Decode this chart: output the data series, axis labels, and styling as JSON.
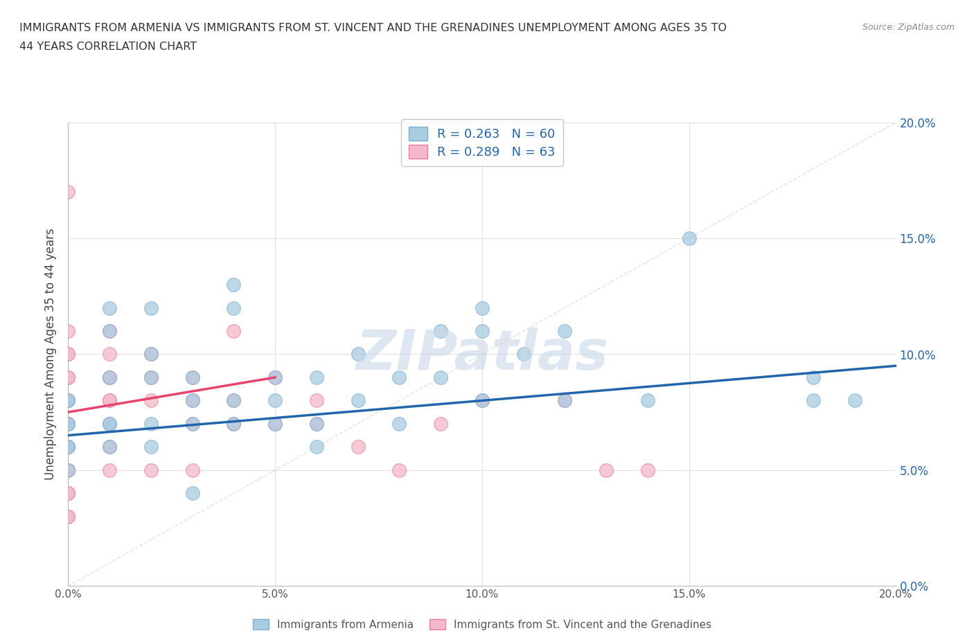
{
  "title_line1": "IMMIGRANTS FROM ARMENIA VS IMMIGRANTS FROM ST. VINCENT AND THE GRENADINES UNEMPLOYMENT AMONG AGES 35 TO",
  "title_line2": "44 YEARS CORRELATION CHART",
  "source": "Source: ZipAtlas.com",
  "ylabel": "Unemployment Among Ages 35 to 44 years",
  "xlim": [
    0.0,
    0.2
  ],
  "ylim": [
    0.0,
    0.2
  ],
  "xticks": [
    0.0,
    0.05,
    0.1,
    0.15,
    0.2
  ],
  "yticks": [
    0.0,
    0.05,
    0.1,
    0.15,
    0.2
  ],
  "xticklabels": [
    "0.0%",
    "5.0%",
    "10.0%",
    "15.0%",
    "20.0%"
  ],
  "yticklabels_right": [
    "0.0%",
    "5.0%",
    "10.0%",
    "15.0%",
    "20.0%"
  ],
  "armenia_color": "#a8cce0",
  "armenia_edge": "#7bafd4",
  "svg_color": "#f4b8c8",
  "svg_edge": "#e87fa0",
  "armenia_R": 0.263,
  "armenia_N": 60,
  "svg_R": 0.289,
  "svg_N": 63,
  "legend_R_color": "#2166ac",
  "armenia_line_color": "#2166ac",
  "svg_line_color": "#e8436a",
  "diag_line_color": "#cccccc",
  "watermark_color": "#c8d8e8",
  "armenia_x": [
    0.0,
    0.0,
    0.0,
    0.0,
    0.0,
    0.0,
    0.0,
    0.01,
    0.01,
    0.01,
    0.01,
    0.01,
    0.01,
    0.02,
    0.02,
    0.02,
    0.02,
    0.02,
    0.03,
    0.03,
    0.03,
    0.03,
    0.04,
    0.04,
    0.04,
    0.04,
    0.05,
    0.05,
    0.05,
    0.06,
    0.06,
    0.06,
    0.07,
    0.07,
    0.08,
    0.08,
    0.09,
    0.09,
    0.1,
    0.1,
    0.1,
    0.11,
    0.12,
    0.12,
    0.14,
    0.15,
    0.18,
    0.18,
    0.19
  ],
  "armenia_y": [
    0.07,
    0.07,
    0.08,
    0.08,
    0.06,
    0.06,
    0.05,
    0.12,
    0.11,
    0.09,
    0.07,
    0.07,
    0.06,
    0.12,
    0.1,
    0.09,
    0.07,
    0.06,
    0.09,
    0.08,
    0.07,
    0.04,
    0.13,
    0.12,
    0.08,
    0.07,
    0.09,
    0.08,
    0.07,
    0.09,
    0.07,
    0.06,
    0.1,
    0.08,
    0.09,
    0.07,
    0.11,
    0.09,
    0.12,
    0.11,
    0.08,
    0.1,
    0.11,
    0.08,
    0.08,
    0.15,
    0.09,
    0.08,
    0.08
  ],
  "svg_x": [
    0.0,
    0.0,
    0.0,
    0.0,
    0.0,
    0.0,
    0.0,
    0.0,
    0.0,
    0.0,
    0.0,
    0.0,
    0.0,
    0.0,
    0.0,
    0.0,
    0.0,
    0.0,
    0.01,
    0.01,
    0.01,
    0.01,
    0.01,
    0.01,
    0.01,
    0.01,
    0.01,
    0.02,
    0.02,
    0.02,
    0.02,
    0.03,
    0.03,
    0.03,
    0.03,
    0.04,
    0.04,
    0.04,
    0.05,
    0.05,
    0.06,
    0.06,
    0.07,
    0.08,
    0.09,
    0.1,
    0.12,
    0.13,
    0.14
  ],
  "svg_y": [
    0.17,
    0.11,
    0.1,
    0.1,
    0.09,
    0.09,
    0.08,
    0.08,
    0.07,
    0.07,
    0.06,
    0.06,
    0.05,
    0.05,
    0.04,
    0.04,
    0.03,
    0.03,
    0.11,
    0.1,
    0.09,
    0.09,
    0.08,
    0.08,
    0.07,
    0.06,
    0.05,
    0.1,
    0.09,
    0.08,
    0.05,
    0.09,
    0.08,
    0.07,
    0.05,
    0.11,
    0.08,
    0.07,
    0.09,
    0.07,
    0.08,
    0.07,
    0.06,
    0.05,
    0.07,
    0.08,
    0.08,
    0.05,
    0.05
  ],
  "arm_trend_x0": 0.0,
  "arm_trend_y0": 0.065,
  "arm_trend_x1": 0.2,
  "arm_trend_y1": 0.095,
  "svg_trend_x0": 0.0,
  "svg_trend_y0": 0.075,
  "svg_trend_x1": 0.05,
  "svg_trend_y1": 0.09
}
